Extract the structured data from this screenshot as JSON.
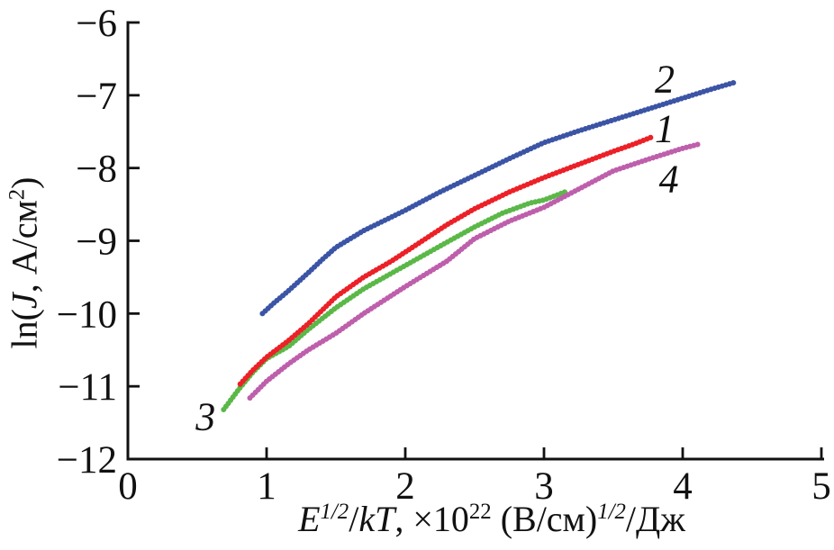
{
  "figure": {
    "background": "#ffffff",
    "axis_color": "#111111"
  },
  "chart_data": {
    "type": "line",
    "title": "",
    "xlabel": {
      "e": "E",
      "sup1": "1/2",
      "slash": "/",
      "kt": "kT",
      "mid": ", ×10",
      "sup2": "22",
      "vcm": " (В/см)",
      "sup3": "1/2",
      "post": "/Дж"
    },
    "ylabel": {
      "pre": "ln(",
      "j": "J",
      "mid": ", А/см",
      "sup": "2",
      "post": ")"
    },
    "xlim": [
      0,
      5
    ],
    "ylim": [
      -12,
      -6
    ],
    "grid": false,
    "legend": "inline-curve-numbers",
    "xticks": [
      {
        "v": 0,
        "t": "0"
      },
      {
        "v": 1,
        "t": "1"
      },
      {
        "v": 2,
        "t": "2"
      },
      {
        "v": 3,
        "t": "3"
      },
      {
        "v": 4,
        "t": "4"
      },
      {
        "v": 5,
        "t": "5"
      }
    ],
    "yticks": [
      {
        "v": -12,
        "t": "−12"
      },
      {
        "v": -11,
        "t": "−11"
      },
      {
        "v": -10,
        "t": "−10"
      },
      {
        "v": -9,
        "t": "−9"
      },
      {
        "v": -8,
        "t": "−8"
      },
      {
        "v": -7,
        "t": "−7"
      },
      {
        "v": -6,
        "t": "−6"
      }
    ],
    "series": [
      {
        "name": "1",
        "color": "#ec2027",
        "z": 2,
        "label_pos": [
          3.87,
          -7.46
        ],
        "points": [
          [
            0.81,
            -10.97
          ],
          [
            0.9,
            -10.78
          ],
          [
            1.0,
            -10.6
          ],
          [
            1.16,
            -10.37
          ],
          [
            1.3,
            -10.14
          ],
          [
            1.5,
            -9.77
          ],
          [
            1.7,
            -9.5
          ],
          [
            1.9,
            -9.28
          ],
          [
            2.1,
            -9.03
          ],
          [
            2.3,
            -8.78
          ],
          [
            2.5,
            -8.56
          ],
          [
            2.75,
            -8.33
          ],
          [
            3.0,
            -8.13
          ],
          [
            3.25,
            -7.95
          ],
          [
            3.5,
            -7.77
          ],
          [
            3.65,
            -7.67
          ],
          [
            3.77,
            -7.58
          ]
        ]
      },
      {
        "name": "2",
        "color": "#3b54a5",
        "z": 4,
        "label_pos": [
          3.87,
          -6.78
        ],
        "points": [
          [
            0.97,
            -10.0
          ],
          [
            1.05,
            -9.86
          ],
          [
            1.15,
            -9.7
          ],
          [
            1.3,
            -9.44
          ],
          [
            1.4,
            -9.26
          ],
          [
            1.5,
            -9.09
          ],
          [
            1.7,
            -8.86
          ],
          [
            1.85,
            -8.72
          ],
          [
            2.0,
            -8.58
          ],
          [
            2.25,
            -8.33
          ],
          [
            2.5,
            -8.1
          ],
          [
            2.75,
            -7.87
          ],
          [
            3.0,
            -7.65
          ],
          [
            3.25,
            -7.49
          ],
          [
            3.5,
            -7.34
          ],
          [
            3.75,
            -7.19
          ],
          [
            4.0,
            -7.04
          ],
          [
            4.2,
            -6.92
          ],
          [
            4.38,
            -6.82
          ]
        ]
      },
      {
        "name": "3",
        "color": "#5bb848",
        "z": 1,
        "label_pos": [
          0.56,
          -11.42
        ],
        "points": [
          [
            0.69,
            -11.32
          ],
          [
            0.8,
            -11.04
          ],
          [
            0.9,
            -10.81
          ],
          [
            1.0,
            -10.62
          ],
          [
            1.16,
            -10.45
          ],
          [
            1.3,
            -10.22
          ],
          [
            1.5,
            -9.92
          ],
          [
            1.7,
            -9.66
          ],
          [
            2.0,
            -9.34
          ],
          [
            2.3,
            -9.02
          ],
          [
            2.5,
            -8.81
          ],
          [
            2.7,
            -8.62
          ],
          [
            2.9,
            -8.48
          ],
          [
            3.0,
            -8.44
          ],
          [
            3.15,
            -8.33
          ]
        ]
      },
      {
        "name": "4",
        "color": "#be5fac",
        "z": 3,
        "label_pos": [
          3.9,
          -8.15
        ],
        "points": [
          [
            0.88,
            -11.16
          ],
          [
            1.0,
            -10.93
          ],
          [
            1.16,
            -10.69
          ],
          [
            1.3,
            -10.5
          ],
          [
            1.5,
            -10.27
          ],
          [
            1.7,
            -10.0
          ],
          [
            2.0,
            -9.63
          ],
          [
            2.3,
            -9.28
          ],
          [
            2.5,
            -8.97
          ],
          [
            2.75,
            -8.73
          ],
          [
            3.0,
            -8.54
          ],
          [
            3.25,
            -8.29
          ],
          [
            3.5,
            -8.04
          ],
          [
            3.75,
            -7.88
          ],
          [
            4.0,
            -7.73
          ],
          [
            4.12,
            -7.67
          ]
        ]
      }
    ]
  }
}
